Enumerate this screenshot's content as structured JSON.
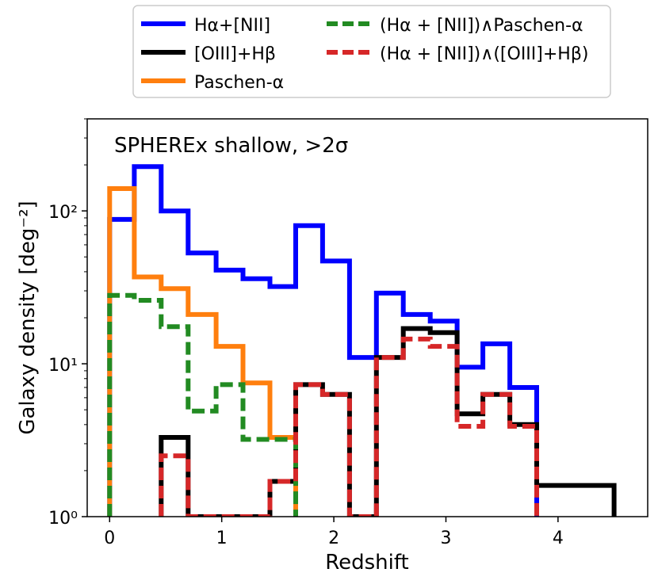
{
  "chart_data": {
    "type": "step-histogram",
    "annotation": "SPHEREx shallow, >2σ",
    "xlabel": "Redshift",
    "ylabel": "Galaxy density [deg⁻²]",
    "xlim": [
      -0.2,
      4.8
    ],
    "ylim": [
      1,
      400
    ],
    "yscale": "log",
    "xticks": [
      0,
      1,
      2,
      3,
      4
    ],
    "xtick_labels": [
      "0",
      "1",
      "2",
      "3",
      "4"
    ],
    "yticks": [
      1,
      10,
      100
    ],
    "ytick_labels": [
      "10⁰",
      "10¹",
      "10²"
    ],
    "legend": {
      "location": "above plot, two columns",
      "entries": [
        {
          "label": "Hα+[NII]",
          "color": "#0000ff",
          "style": "solid"
        },
        {
          "label": "[OIII]+Hβ",
          "color": "#000000",
          "style": "solid"
        },
        {
          "label": "Paschen-α",
          "color": "#ff7f0e",
          "style": "solid"
        },
        {
          "label": "(Hα + [NII])∧Paschen-α",
          "color": "#228b22",
          "style": "dashed"
        },
        {
          "label": "(Hα + [NII])∧([OIII]+Hβ)",
          "color": "#d62728",
          "style": "dashed"
        }
      ]
    },
    "bin_edges": [
      0,
      0.23,
      0.46,
      0.69,
      0.92,
      1.15,
      1.38,
      1.61,
      1.84,
      2.07,
      2.3,
      2.53,
      2.76,
      2.99,
      3.22,
      3.45,
      3.68,
      3.91,
      4.14,
      4.5
    ],
    "series": [
      {
        "name": "Hα+[NII]",
        "color": "#0000ff",
        "dashed": false,
        "edges": [
          0,
          0.22,
          0.46,
          0.7,
          0.95,
          1.19,
          1.43,
          1.66,
          1.9,
          2.14,
          2.38,
          2.62,
          2.86,
          3.1,
          3.33,
          3.57,
          3.81
        ],
        "values": [
          88,
          195,
          100,
          53,
          41,
          36,
          32,
          80,
          47,
          11,
          29,
          21,
          19,
          9.5,
          13.5,
          7
        ]
      },
      {
        "name": "[OIII]+Hβ",
        "color": "#000000",
        "dashed": false,
        "edges": [
          0.46,
          0.7,
          1.43,
          1.66,
          1.9,
          2.14,
          2.38,
          2.62,
          2.86,
          3.1,
          3.33,
          3.57,
          3.81,
          4.05,
          4.29,
          4.5
        ],
        "values": [
          3.3,
          1,
          1.7,
          7.3,
          6.3,
          1,
          11,
          17,
          16,
          4.7,
          6.3,
          4,
          1.6,
          1.6,
          1.6
        ]
      },
      {
        "name": "Paschen-α",
        "color": "#ff7f0e",
        "dashed": false,
        "edges": [
          0,
          0.22,
          0.46,
          0.7,
          0.95,
          1.19,
          1.43,
          1.66
        ],
        "values": [
          140,
          37,
          31,
          21,
          13,
          7.5,
          3.3
        ]
      },
      {
        "name": "(Hα + [NII])∧Paschen-α",
        "color": "#228b22",
        "dashed": true,
        "edges": [
          0,
          0.22,
          0.46,
          0.7,
          0.95,
          1.19,
          1.43,
          1.66
        ],
        "values": [
          28,
          26,
          17.5,
          4.9,
          7.3,
          3.2,
          3.2
        ]
      },
      {
        "name": "(Hα + [NII])∧([OIII]+Hβ)",
        "color": "#d62728",
        "dashed": true,
        "edges": [
          0.46,
          0.7,
          1.43,
          1.66,
          1.9,
          2.14,
          2.38,
          2.62,
          2.86,
          3.1,
          3.33,
          3.57,
          3.81
        ],
        "values": [
          2.5,
          1,
          1.7,
          7.3,
          6.3,
          1,
          11,
          14.5,
          13,
          3.9,
          6.3,
          3.9
        ]
      }
    ]
  }
}
